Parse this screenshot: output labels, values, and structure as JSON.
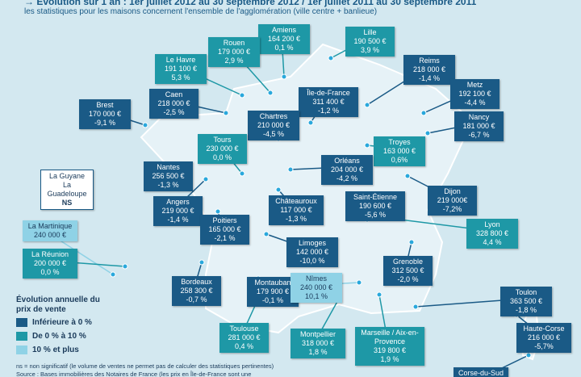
{
  "header": {
    "title": "Évolution sur 1 an : 1er juillet 2012 au 30 septembre 2012 / 1er juillet 2011 au 30 septembre 2011",
    "subtitle": "les statistiques pour les maisons concernent l'ensemble de l'agglomération (ville centre + banlieue)"
  },
  "callouts": [
    {
      "name": "Amiens",
      "price": "164 200 €",
      "change": "0,1 %",
      "color": "#1e98a6"
    },
    {
      "name": "Lille",
      "price": "190 500 €",
      "change": "3,9 %",
      "color": "#1e98a6"
    },
    {
      "name": "Rouen",
      "price": "179 000 €",
      "change": "2,9 %",
      "color": "#1e98a6"
    },
    {
      "name": "Le Havre",
      "price": "191 100 €",
      "change": "5,3 %",
      "color": "#1e98a6"
    },
    {
      "name": "Reims",
      "price": "218 000 €",
      "change": "-1,4 %",
      "color": "#1a5a86"
    },
    {
      "name": "Île-de-France",
      "price": "311 400 €",
      "change": "-1,2 %",
      "color": "#1a5a86"
    },
    {
      "name": "Caen",
      "price": "218 000 €",
      "change": "-2,5 %",
      "color": "#1a5a86"
    },
    {
      "name": "Metz",
      "price": "192 100 €",
      "change": "-4,4 %",
      "color": "#1a5a86"
    },
    {
      "name": "Brest",
      "price": "170 000 €",
      "change": "-9,1 %",
      "color": "#1a5a86"
    },
    {
      "name": "Chartres",
      "price": "210 000 €",
      "change": "-4,5 %",
      "color": "#1a5a86"
    },
    {
      "name": "Nancy",
      "price": "181 000 €",
      "change": "-6,7 %",
      "color": "#1a5a86"
    },
    {
      "name": "Tours",
      "price": "230 000 €",
      "change": "0,0 %",
      "color": "#1e98a6"
    },
    {
      "name": "Troyes",
      "price": "163 000 €",
      "change": "0,6%",
      "color": "#1e98a6"
    },
    {
      "name": "Orléans",
      "price": "204 000 €",
      "change": "-4,2 %",
      "color": "#1a5a86"
    },
    {
      "name": "Nantes",
      "price": "256 500 €",
      "change": "-1,3 %",
      "color": "#1a5a86"
    },
    {
      "name": "Dijon",
      "price": "219 000€",
      "change": "-7,2%",
      "color": "#1a5a86"
    },
    {
      "name": "Saint-Étienne",
      "price": "190 600 €",
      "change": "-5,6 %",
      "color": "#1a5a86"
    },
    {
      "name": "Angers",
      "price": "219 000 €",
      "change": "-1,4 %",
      "color": "#1a5a86"
    },
    {
      "name": "Châteauroux",
      "price": "117 000 €",
      "change": "-1,3 %",
      "color": "#1a5a86"
    },
    {
      "name": "Lyon",
      "price": "328 800 €",
      "change": "4,4 %",
      "color": "#1e98a6"
    },
    {
      "name": "Poitiers",
      "price": "165 000 €",
      "change": "-2,1 %",
      "color": "#1a5a86"
    },
    {
      "name": "La Martinique",
      "price": "240 000 €",
      "color": "#8fd2e6"
    },
    {
      "name": "Limoges",
      "price": "142 000 €",
      "change": "-10,0 %",
      "color": "#1a5a86"
    },
    {
      "name": "La Réunion",
      "price": "200 000 €",
      "change": "0,0 %",
      "color": "#1e98a6"
    },
    {
      "name": "Grenoble",
      "price": "312 500 €",
      "change": "-2,0 %",
      "color": "#1a5a86"
    },
    {
      "name": "Bordeaux",
      "price": "258 300 €",
      "change": "-0,7 %",
      "color": "#1a5a86"
    },
    {
      "name": "Montauban",
      "price": "179 900 €",
      "change": "-0,1 %",
      "color": "#1a5a86"
    },
    {
      "name": "Nîmes",
      "price": "240 000 €",
      "change": "10,1 %",
      "color": "#8fd2e6"
    },
    {
      "name": "Toulon",
      "price": "363 500 €",
      "change": "-1,8 %",
      "color": "#1a5a86"
    },
    {
      "name": "Toulouse",
      "price": "281 000 €",
      "change": "0,4 %",
      "color": "#1e98a6"
    },
    {
      "name": "Montpellier",
      "price": "318 000 €",
      "change": "1,8 %",
      "color": "#1e98a6"
    },
    {
      "name": "Marseille / Aix-en-Provence",
      "price": "319 800 €",
      "change": "1,9 %",
      "color": "#1e98a6"
    },
    {
      "name": "Haute-Corse",
      "price": "216 000 €",
      "change": "-5,7%",
      "color": "#1a5a86"
    },
    {
      "name": "Corse-du-Sud",
      "color": "#1a5a86"
    }
  ],
  "overseas": {
    "lines": [
      "La Guyane",
      "La Guadeloupe"
    ],
    "status": "NS"
  },
  "legend": {
    "title": "Évolution annuelle du prix de vente",
    "items": [
      {
        "label": "Inférieure à 0 %",
        "color": "#1a5a86"
      },
      {
        "label": "De 0 % à 10 %",
        "color": "#1e98a6"
      },
      {
        "label": "10 % et plus",
        "color": "#8fd2e6"
      }
    ]
  },
  "notes": [
    "ns = non significatif (le volume de ventes ne permet pas de calculer des statistiques pertinentes)",
    "Source : Bases immobilières des Notaires de France (les prix en Île-de-France sont une"
  ]
}
